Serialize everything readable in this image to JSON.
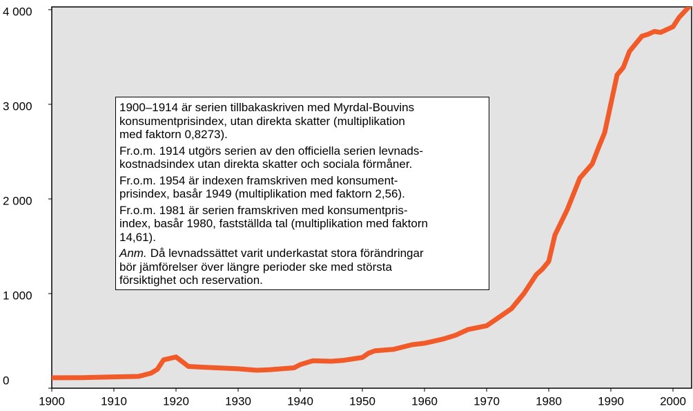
{
  "chart_data": {
    "type": "line",
    "x": [
      1900,
      1905,
      1910,
      1914,
      1916,
      1917,
      1918,
      1920,
      1921,
      1922,
      1925,
      1930,
      1933,
      1935,
      1939,
      1940,
      1942,
      1945,
      1947,
      1950,
      1951,
      1952,
      1955,
      1958,
      1960,
      1963,
      1965,
      1967,
      1970,
      1972,
      1974,
      1976,
      1978,
      1979,
      1980,
      1981,
      1983,
      1985,
      1987,
      1988,
      1989,
      1991,
      1992,
      1993,
      1995,
      1996,
      1997,
      1998,
      2000,
      2001,
      2003
    ],
    "series": [
      {
        "color": "#f15a29",
        "values": [
          110,
          112,
          120,
          125,
          160,
          200,
          300,
          330,
          280,
          230,
          220,
          205,
          190,
          195,
          215,
          250,
          290,
          285,
          295,
          325,
          370,
          395,
          410,
          460,
          475,
          520,
          560,
          620,
          660,
          750,
          840,
          1000,
          1200,
          1260,
          1340,
          1620,
          1890,
          2220,
          2370,
          2540,
          2700,
          3310,
          3390,
          3560,
          3720,
          3740,
          3770,
          3760,
          3820,
          3920,
          4060
        ]
      }
    ],
    "xlim": [
      1900,
      2003
    ],
    "xticks": [
      1900,
      1910,
      1920,
      1930,
      1940,
      1950,
      1960,
      1970,
      1980,
      1990,
      2000
    ],
    "ylim": [
      0,
      4000
    ],
    "yticks": [
      0,
      {
        "value": 1000,
        "label": "1 000"
      },
      {
        "value": 2000,
        "label": "2 000"
      },
      {
        "value": 3000,
        "label": "3 000"
      },
      {
        "value": 4000,
        "label": "4 000"
      }
    ],
    "annotation": [
      "1900–1914 är serien tillbakaskriven med Myrdal-Bouvins",
      "konsumentprisindex, utan direkta skatter (multiplikation",
      "med faktorn 0,8273).",
      "Fr.o.m. 1914 utgörs serien av den officiella serien levnads-",
      "kostnadsindex utan direkta skatter och sociala förmåner.",
      "Fr.o.m. 1954 är indexen framskriven med konsument-",
      "prisindex, basår 1949 (multiplikation med faktorn 2,56).",
      "Fr.o.m. 1981 är serien framskriven med konsumentpris-",
      "index, basår 1980, fastställda tal (multiplikation med faktorn",
      "14,61).",
      "Anm.",
      "Då levnadssättet varit underkastat stora förändringar",
      "bör jämförelser över längre perioder ske med största",
      "försiktighet och reservation."
    ]
  }
}
